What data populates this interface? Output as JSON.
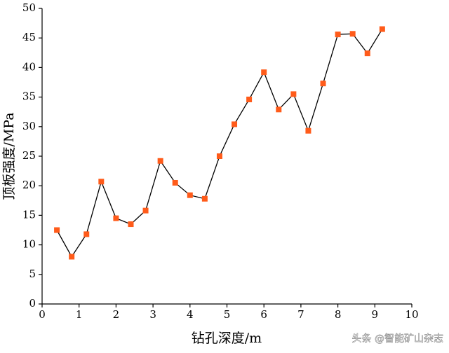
{
  "chart_data": {
    "type": "line",
    "x_label": "钻孔深度/m",
    "y_label": "顶板强度/MPa",
    "x": [
      0.4,
      0.8,
      1.2,
      1.6,
      2.0,
      2.4,
      2.8,
      3.2,
      3.6,
      4.0,
      4.4,
      4.8,
      5.2,
      5.6,
      6.0,
      6.4,
      6.8,
      7.2,
      7.6,
      8.0,
      8.4,
      8.8,
      9.2
    ],
    "values": [
      12.5,
      8,
      11.8,
      20.7,
      14.5,
      13.5,
      15.8,
      24.2,
      20.5,
      18.4,
      17.8,
      25,
      30.4,
      34.6,
      39.2,
      32.9,
      35.5,
      29.3,
      37.3,
      45.6,
      45.7,
      42.4,
      46.5
    ],
    "color": "#000000",
    "marker_color": "#ff5b1a",
    "xlim": [
      0,
      10
    ],
    "xticks": [
      0,
      1,
      2,
      3,
      4,
      5,
      6,
      7,
      8,
      9,
      10
    ],
    "ylim": [
      0,
      50
    ],
    "yticks": [
      0,
      5,
      10,
      15,
      20,
      25,
      30,
      35,
      40,
      45,
      50
    ],
    "watermark": "头条 @智能矿山杂志"
  }
}
